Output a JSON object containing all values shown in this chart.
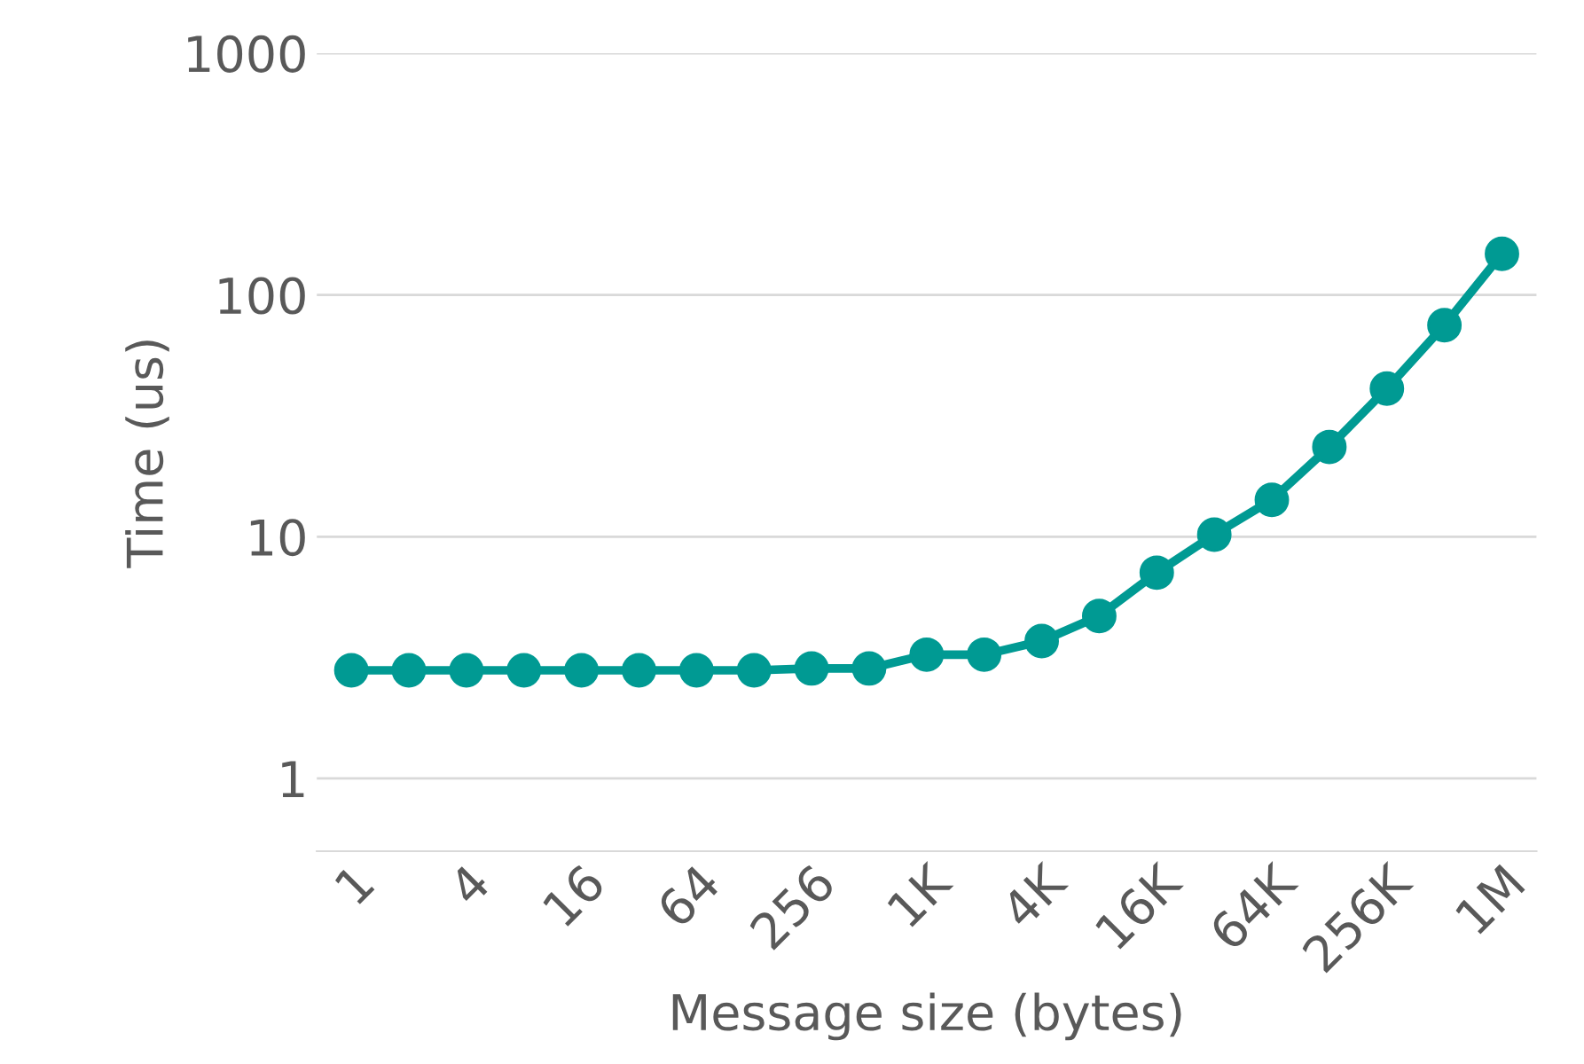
{
  "chart_data": {
    "type": "line",
    "xlabel": "Message size (bytes)",
    "ylabel": "Time (us)",
    "categories": [
      "1",
      null,
      "4",
      null,
      "16",
      null,
      "64",
      null,
      "256",
      null,
      "1K",
      null,
      "4K",
      null,
      "16K",
      null,
      "64K",
      null,
      "256K",
      null,
      "1M"
    ],
    "series": [
      {
        "color": "#009a93",
        "values": [
          2.8,
          2.8,
          2.8,
          2.8,
          2.8,
          2.8,
          2.8,
          2.8,
          2.85,
          2.85,
          3.25,
          3.25,
          3.7,
          4.7,
          7.1,
          10.2,
          14.2,
          23.5,
          41,
          75,
          148
        ]
      }
    ],
    "log": "y",
    "ylim": [
      0.5,
      1000
    ],
    "yticks": [
      1,
      10,
      100,
      1000
    ],
    "grid": "y",
    "marker": "circle",
    "line_style": "solid"
  }
}
